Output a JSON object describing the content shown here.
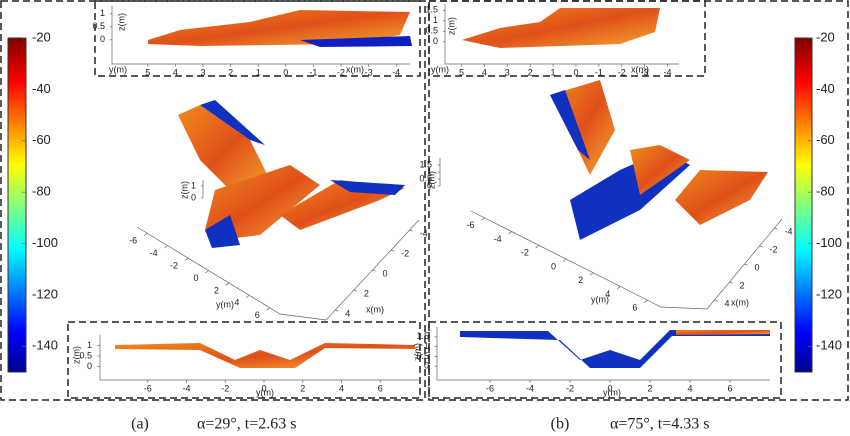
{
  "colorbars": [
    {
      "ticks": [
        -20,
        -40,
        -60,
        -80,
        -100,
        -120,
        -140
      ],
      "lim": [
        -150,
        -20
      ]
    },
    {
      "ticks": [
        -20,
        -40,
        -60,
        -80,
        -100,
        -120,
        -140
      ],
      "lim": [
        -150,
        -20
      ]
    }
  ],
  "panels": [
    {
      "caption": {
        "label": "(a)",
        "text": "α=29°, t=2.63 s"
      },
      "top_view": {
        "xlabel": "x(m)",
        "ylabel": "y(m)",
        "zlabel": "z(m)",
        "xticks": [
          5,
          4,
          3,
          2,
          1,
          0,
          -1,
          -2,
          -3,
          -4
        ],
        "xlim": [
          5.5,
          -4.5
        ],
        "zticks": [
          0,
          0.5,
          1
        ],
        "zlim": [
          -0.2,
          1.3
        ]
      },
      "iso_view": {
        "xlabel": "x(m)",
        "ylabel": "y(m)",
        "zlabel": "z(m)",
        "yticks": [
          -6,
          -4,
          -2,
          0,
          2,
          4,
          6
        ],
        "ylim": [
          -7,
          7
        ],
        "xticks": [
          -4,
          -2,
          0,
          2,
          4
        ],
        "xlim": [
          -5,
          5
        ],
        "zticks": [
          0,
          1
        ],
        "zlim": [
          0,
          1.5
        ]
      },
      "front_view": {
        "ylabel": "y(m)",
        "zlabel": "z(m)",
        "yticks": [
          -6,
          -4,
          -2,
          0,
          2,
          4,
          6
        ],
        "ylim": [
          -8,
          8
        ],
        "zticks": [
          0,
          0.5,
          1
        ],
        "zlim": [
          -0.5,
          1.5
        ]
      }
    },
    {
      "caption": {
        "label": "(b)",
        "text": "α=75°, t=4.33 s"
      },
      "top_view": {
        "xlabel": "x(m)",
        "ylabel": "y(m)",
        "zlabel": "z(m)",
        "xticks": [
          5,
          4,
          3,
          2,
          1,
          0,
          -1,
          -2,
          -3,
          -4
        ],
        "xlim": [
          5.5,
          -4.5
        ],
        "zticks": [
          0,
          0.5,
          1,
          1.5
        ],
        "zlim": [
          -0.2,
          1.8
        ]
      },
      "iso_view": {
        "xlabel": "x(m)",
        "ylabel": "y(m)",
        "zlabel": "z(m)",
        "yticks": [
          -6,
          -4,
          -2,
          0,
          2,
          4,
          6
        ],
        "ylim": [
          -7,
          7
        ],
        "xticks": [
          -4,
          -2,
          0,
          2,
          4
        ],
        "xlim": [
          -5,
          5
        ],
        "zticks": [
          0,
          0.5,
          1,
          1.5
        ],
        "zlim": [
          0,
          2
        ]
      },
      "front_view": {
        "ylabel": "y(m)",
        "zlabel": "z(m)",
        "yticks": [
          -6,
          -4,
          -2,
          0,
          2,
          4,
          6
        ],
        "ylim": [
          -8,
          8
        ],
        "zticks": [
          0,
          0.5,
          1,
          1.5
        ],
        "zlim": [
          -0.5,
          2
        ]
      }
    }
  ]
}
